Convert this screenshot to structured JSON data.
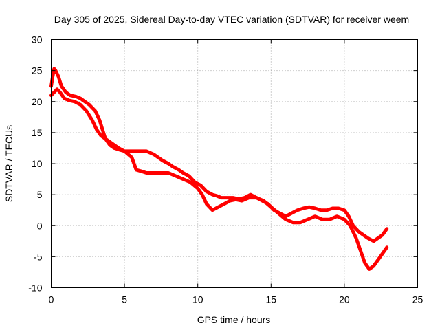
{
  "chart_data": {
    "type": "line",
    "title": "Day 305 of 2025, Sidereal Day-to-day VTEC variation (SDTVAR) for receiver weem",
    "xlabel": "GPS time / hours",
    "ylabel": "SDTVAR / TECUs",
    "xlim": [
      0,
      25
    ],
    "ylim": [
      -10,
      30
    ],
    "xticks": [
      0,
      5,
      10,
      15,
      20,
      25
    ],
    "xtick_labels": [
      "0",
      "5",
      "10",
      "15",
      "20",
      "25"
    ],
    "yticks": [
      -10,
      -5,
      0,
      5,
      10,
      15,
      20,
      25,
      30
    ],
    "ytick_labels": [
      "-10",
      "-5",
      "0",
      "5",
      "10",
      "15",
      "20",
      "25",
      "30"
    ],
    "grid": true,
    "series_color": "#ff0000",
    "series": [
      {
        "name": "upper track",
        "x": [
          0.0,
          0.1,
          0.2,
          0.3,
          0.5,
          0.7,
          1.0,
          1.3,
          1.7,
          2.0,
          2.3,
          2.6,
          3.0,
          3.3,
          3.5,
          3.7,
          4.0,
          4.3,
          4.7,
          5.0,
          5.3,
          5.7,
          6.0,
          6.5,
          7.0,
          7.3,
          7.6,
          8.0,
          8.3,
          8.7,
          9.0,
          9.4,
          9.8,
          10.2,
          10.6,
          11.0,
          11.3,
          11.6,
          12.0,
          12.4,
          12.8,
          13.2,
          13.6,
          14.0,
          14.4,
          14.8,
          15.2,
          15.6,
          16.0,
          16.4,
          16.8,
          17.2,
          17.6,
          18.0,
          18.4,
          18.8,
          19.2,
          19.6,
          20.0,
          20.3,
          20.6,
          21.0,
          21.3,
          21.6,
          22.0,
          22.3,
          22.6,
          22.9
        ],
        "y": [
          22.5,
          24.0,
          25.3,
          25.0,
          24.0,
          22.5,
          21.5,
          21.0,
          20.8,
          20.5,
          20.0,
          19.5,
          18.5,
          17.0,
          15.5,
          14.0,
          13.0,
          12.5,
          12.2,
          12.0,
          12.0,
          12.0,
          12.0,
          12.0,
          11.5,
          11.0,
          10.5,
          10.0,
          9.5,
          9.0,
          8.5,
          8.0,
          7.0,
          6.5,
          5.5,
          5.0,
          4.8,
          4.5,
          4.5,
          4.5,
          4.3,
          4.5,
          5.0,
          4.5,
          4.0,
          3.5,
          2.5,
          2.0,
          1.5,
          2.0,
          2.5,
          2.8,
          3.0,
          2.8,
          2.5,
          2.5,
          2.8,
          2.8,
          2.5,
          1.5,
          0.0,
          -1.0,
          -1.5,
          -2.0,
          -2.5,
          -2.0,
          -1.5,
          -0.5
        ]
      },
      {
        "name": "lower track",
        "x": [
          0.0,
          0.2,
          0.4,
          0.6,
          0.9,
          1.2,
          1.6,
          2.0,
          2.4,
          2.8,
          3.1,
          3.4,
          3.7,
          4.0,
          4.3,
          4.6,
          5.0,
          5.5,
          5.8,
          6.1,
          6.5,
          7.0,
          7.5,
          8.0,
          8.5,
          9.0,
          9.5,
          10.0,
          10.3,
          10.6,
          11.0,
          11.4,
          11.8,
          12.2,
          12.6,
          13.0,
          13.5,
          14.0,
          14.5,
          15.0,
          15.5,
          16.0,
          16.5,
          17.0,
          17.5,
          18.0,
          18.5,
          19.0,
          19.5,
          20.0,
          20.4,
          20.8,
          21.1,
          21.4,
          21.7,
          22.0,
          22.3,
          22.6,
          22.9
        ],
        "y": [
          21.0,
          21.5,
          22.0,
          21.5,
          20.5,
          20.2,
          20.0,
          19.5,
          18.5,
          17.0,
          15.5,
          14.5,
          14.0,
          13.5,
          13.0,
          12.5,
          12.0,
          11.0,
          9.0,
          8.8,
          8.5,
          8.5,
          8.5,
          8.5,
          8.0,
          7.5,
          7.0,
          6.0,
          5.0,
          3.5,
          2.5,
          3.0,
          3.5,
          4.0,
          4.2,
          4.0,
          4.5,
          4.5,
          4.0,
          3.0,
          2.0,
          1.0,
          0.5,
          0.5,
          1.0,
          1.5,
          1.0,
          1.0,
          1.5,
          1.0,
          0.0,
          -2.0,
          -4.0,
          -6.0,
          -7.0,
          -6.5,
          -5.5,
          -4.5,
          -3.5
        ]
      }
    ]
  }
}
